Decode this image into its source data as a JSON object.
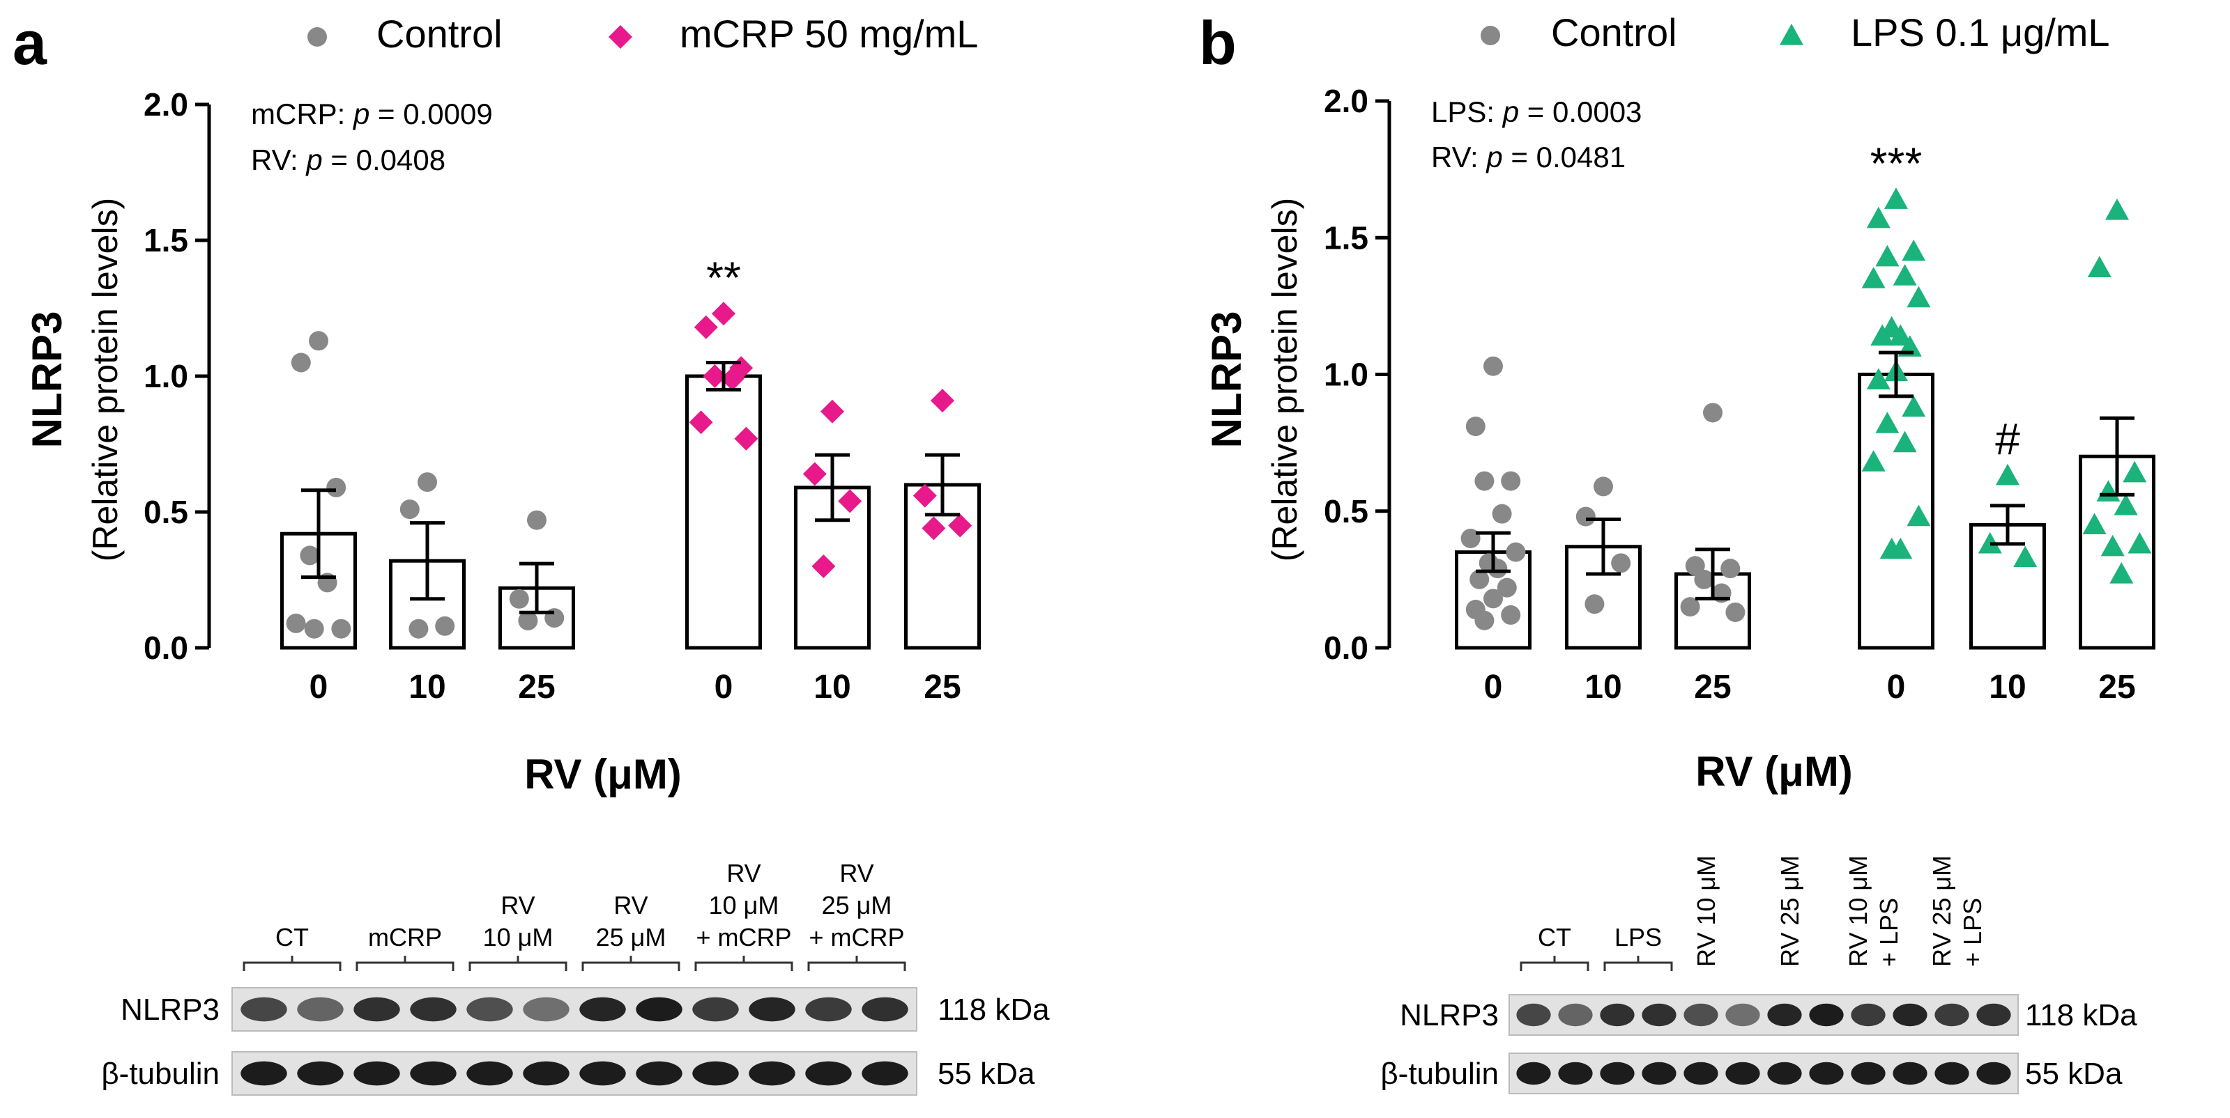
{
  "figure": {
    "panels": [
      "a",
      "b"
    ]
  },
  "chart_data": [
    {
      "type": "bar",
      "panel_label": "a",
      "legend": [
        {
          "name": "Control",
          "marker": "circle",
          "color": "#888888"
        },
        {
          "name": "mCRP 50 mg/mL",
          "marker": "diamond",
          "color": "#e8198b"
        }
      ],
      "stats": [
        {
          "factor": "mCRP",
          "p_label": "p",
          "value": "= 0.0009"
        },
        {
          "factor": "RV",
          "p_label": "p",
          "value": "= 0.0408"
        }
      ],
      "ylabel": "NLRP3",
      "ylabel_sub": "(Relative protein levels)",
      "xlabel": "RV (μM)",
      "ylim": [
        0,
        2.0
      ],
      "yticks": [
        "0.0",
        "0.5",
        "1.0",
        "1.5",
        "2.0"
      ],
      "groups": [
        {
          "series": "Control",
          "bars": [
            {
              "label": "0",
              "mean": 0.42,
              "sem": 0.16,
              "points": [
                1.13,
                1.05,
                0.59,
                0.34,
                0.24,
                0.09,
                0.07,
                0.07
              ]
            },
            {
              "label": "10",
              "mean": 0.32,
              "sem": 0.14,
              "points": [
                0.61,
                0.51,
                0.08,
                0.07
              ]
            },
            {
              "label": "25",
              "mean": 0.22,
              "sem": 0.09,
              "points": [
                0.47,
                0.18,
                0.11,
                0.1
              ]
            }
          ]
        },
        {
          "series": "mCRP 50 mg/mL",
          "bars": [
            {
              "label": "0",
              "mean": 1.0,
              "sem": 0.05,
              "points": [
                1.23,
                1.18,
                1.03,
                1.0,
                0.99,
                0.83,
                0.77
              ],
              "annotation": "**"
            },
            {
              "label": "10",
              "mean": 0.59,
              "sem": 0.12,
              "points": [
                0.87,
                0.64,
                0.54,
                0.3
              ]
            },
            {
              "label": "25",
              "mean": 0.6,
              "sem": 0.11,
              "points": [
                0.91,
                0.56,
                0.45,
                0.44
              ]
            }
          ]
        }
      ]
    },
    {
      "type": "bar",
      "panel_label": "b",
      "legend": [
        {
          "name": "Control",
          "marker": "circle",
          "color": "#888888"
        },
        {
          "name": "LPS 0.1 μg/mL",
          "marker": "triangle",
          "color": "#1ab37b"
        }
      ],
      "stats": [
        {
          "factor": "LPS",
          "p_label": "p",
          "value": "= 0.0003"
        },
        {
          "factor": "RV",
          "p_label": "p",
          "value": "= 0.0481"
        }
      ],
      "ylabel": "NLRP3",
      "ylabel_sub": "(Relative protein levels)",
      "xlabel": "RV (μM)",
      "ylim": [
        0,
        2.0
      ],
      "yticks": [
        "0.0",
        "0.5",
        "1.0",
        "1.5",
        "2.0"
      ],
      "groups": [
        {
          "series": "Control",
          "bars": [
            {
              "label": "0",
              "mean": 0.35,
              "sem": 0.07,
              "points": [
                1.03,
                0.81,
                0.61,
                0.61,
                0.49,
                0.4,
                0.35,
                0.31,
                0.29,
                0.25,
                0.22,
                0.18,
                0.14,
                0.12,
                0.1
              ]
            },
            {
              "label": "10",
              "mean": 0.37,
              "sem": 0.1,
              "points": [
                0.59,
                0.48,
                0.31,
                0.16
              ]
            },
            {
              "label": "25",
              "mean": 0.27,
              "sem": 0.09,
              "points": [
                0.86,
                0.3,
                0.29,
                0.25,
                0.2,
                0.15,
                0.13
              ]
            }
          ]
        },
        {
          "series": "LPS 0.1 μg/mL",
          "bars": [
            {
              "label": "0",
              "mean": 1.0,
              "sem": 0.08,
              "points": [
                1.64,
                1.57,
                1.45,
                1.43,
                1.36,
                1.35,
                1.28,
                1.17,
                1.14,
                1.14,
                1.1,
                1.01,
                0.98,
                0.88,
                0.82,
                0.75,
                0.68,
                0.48,
                0.36,
                0.36
              ],
              "annotation": "***"
            },
            {
              "label": "10",
              "mean": 0.45,
              "sem": 0.07,
              "points": [
                0.63,
                0.38,
                0.33
              ],
              "annotation": "#"
            },
            {
              "label": "25",
              "mean": 0.7,
              "sem": 0.14,
              "points": [
                1.6,
                1.39,
                0.64,
                0.57,
                0.52,
                0.45,
                0.38,
                0.37,
                0.27
              ]
            }
          ]
        }
      ]
    }
  ],
  "blots": [
    {
      "panel": "a",
      "lane_groups": [
        {
          "lines": [
            "CT"
          ]
        },
        {
          "lines": [
            "mCRP"
          ]
        },
        {
          "lines": [
            "RV",
            "10 μM"
          ]
        },
        {
          "lines": [
            "RV",
            "25 μM"
          ]
        },
        {
          "lines": [
            "RV",
            "10 μM",
            "+ mCRP"
          ]
        },
        {
          "lines": [
            "RV",
            "25 μM",
            "+ mCRP"
          ]
        }
      ],
      "rows": [
        {
          "protein": "NLRP3",
          "size": "118 kDa"
        },
        {
          "protein": "β-tubulin",
          "size": "55 kDa"
        }
      ]
    },
    {
      "panel": "b",
      "lane_groups": [
        {
          "lines": [
            "CT"
          ],
          "vertical": false
        },
        {
          "lines": [
            "LPS"
          ],
          "vertical": false
        },
        {
          "lines": [
            "RV 10 μM"
          ],
          "vertical": true
        },
        {
          "lines": [
            "RV 25 μM"
          ],
          "vertical": true
        },
        {
          "lines": [
            "RV 10 μM",
            "+ LPS"
          ],
          "vertical": true
        },
        {
          "lines": [
            "RV 25 μM",
            "+ LPS"
          ],
          "vertical": true
        }
      ],
      "rows": [
        {
          "protein": "NLRP3",
          "size": "118 kDa"
        },
        {
          "protein": "β-tubulin",
          "size": "55 kDa"
        }
      ]
    }
  ]
}
